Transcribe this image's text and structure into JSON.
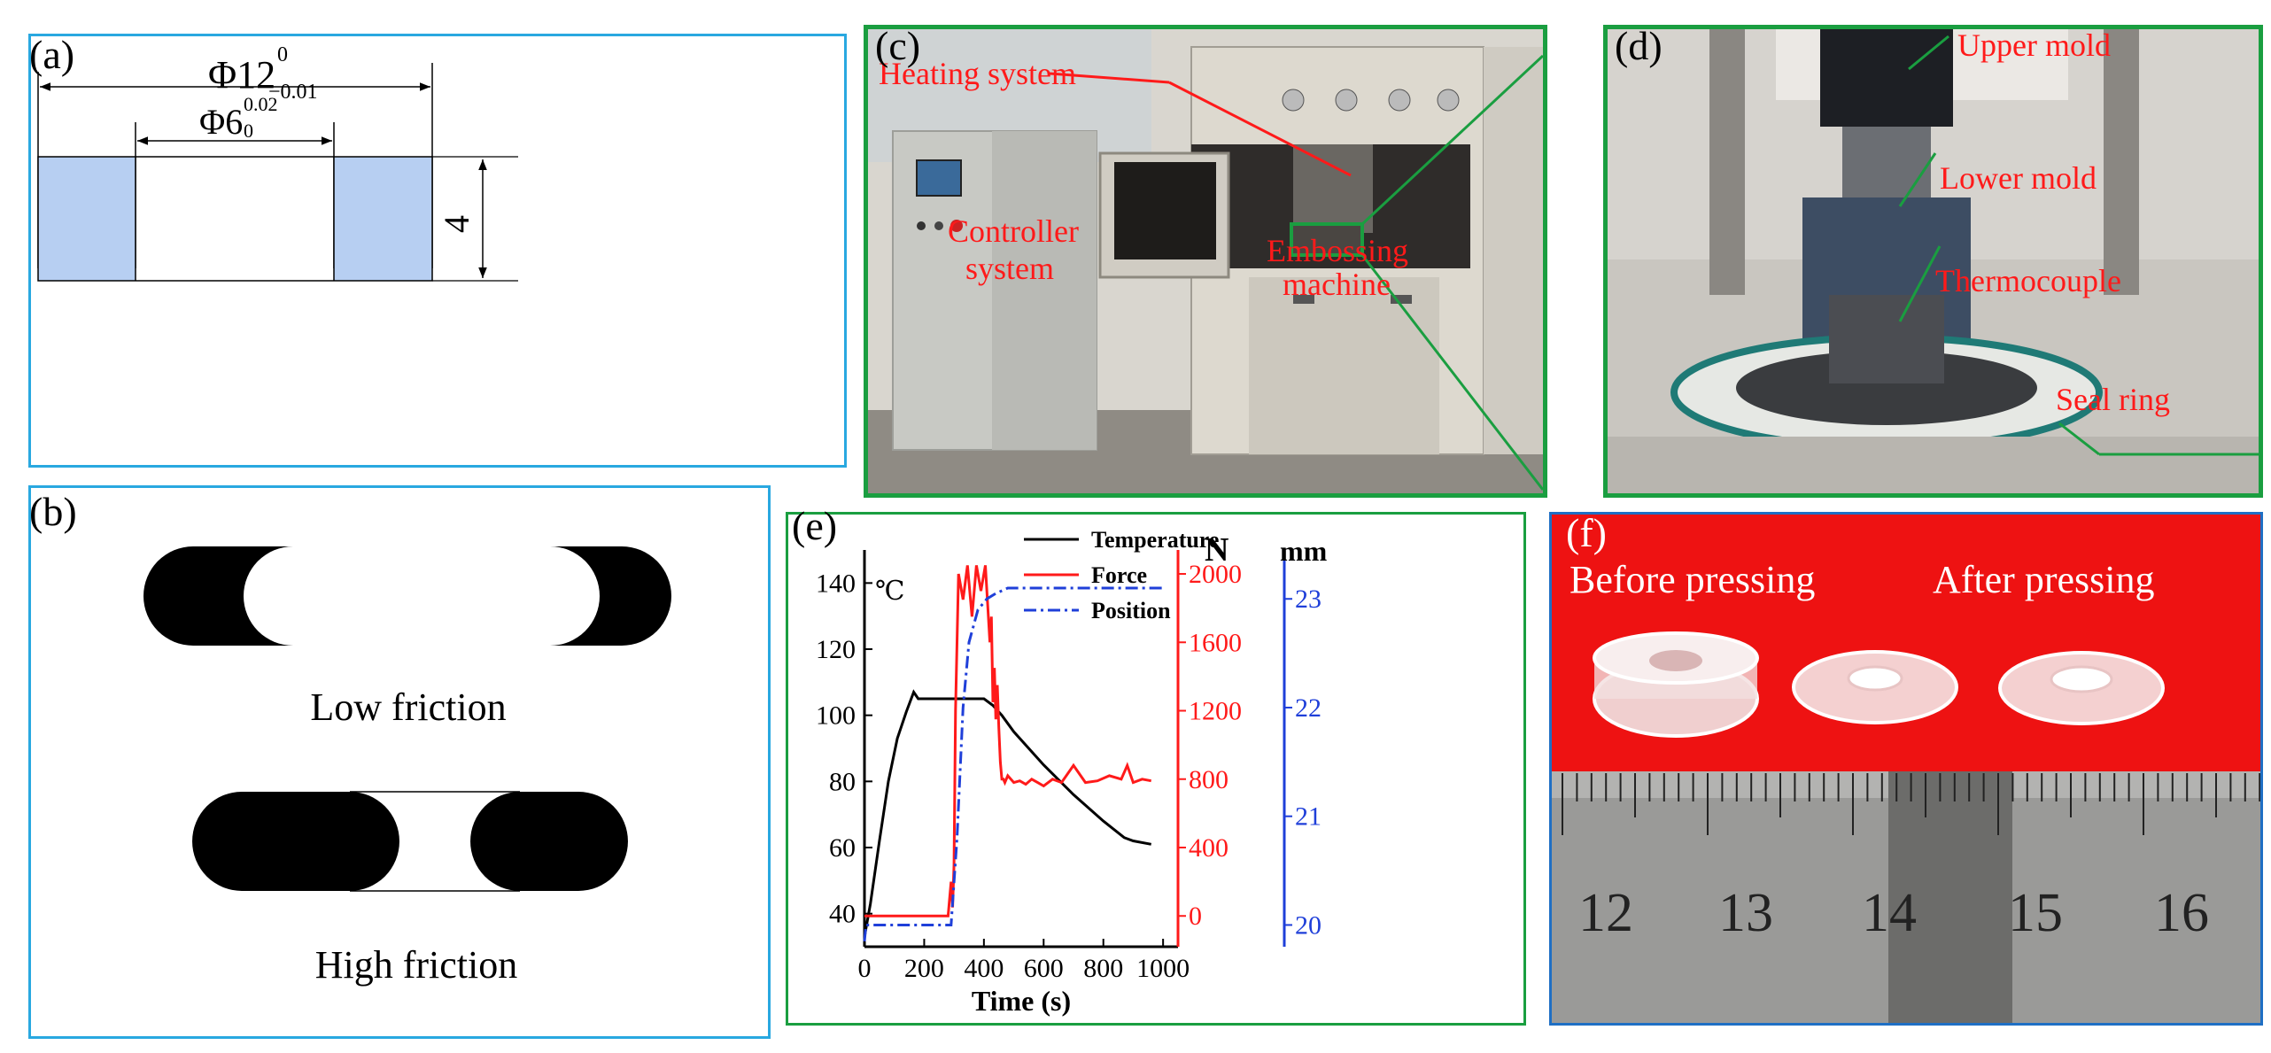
{
  "panels": {
    "a": {
      "tag": "(a)",
      "dim_outer": {
        "symbol": "Φ12",
        "upper_tol": "0",
        "lower_tol": "−0.01"
      },
      "dim_inner": {
        "symbol": "Φ6",
        "upper_tol": "0.02",
        "lower_tol": "0"
      },
      "dim_height": "4"
    },
    "b": {
      "tag": "(b)",
      "low_label": "Low friction",
      "high_label": "High friction"
    },
    "c": {
      "tag": "(c)",
      "labels": [
        "Heating system",
        "Controller system",
        "Embossing machine"
      ]
    },
    "d": {
      "tag": "(d)",
      "labels": [
        "Upper mold",
        "Lower mold",
        "Thermocouple",
        "Seal ring"
      ]
    },
    "e": {
      "tag": "(e)"
    },
    "f": {
      "tag": "(f)",
      "before_label": "Before pressing",
      "after_label": "After pressing",
      "ruler_numbers": [
        "12",
        "13",
        "14",
        "15",
        "16"
      ]
    }
  },
  "colors": {
    "panel_border_blue": "#29a8e0",
    "panel_border_green": "#1a9e40",
    "fill_blue": "#b7cff2",
    "annot_red": "#ff1a1a",
    "temp_line": "#000000",
    "force_line": "#ff1a1a",
    "position_line": "#1f3fd9"
  },
  "chart_data": {
    "type": "line",
    "xlabel": "Time (s)",
    "x_ticks": [
      0,
      200,
      400,
      600,
      800,
      1000
    ],
    "xlim": [
      0,
      1050
    ],
    "legend": [
      "Temperature",
      "Force",
      "Position"
    ],
    "legend_position": "top-right",
    "axes": {
      "temperature": {
        "unit": "℃",
        "ylim": [
          30,
          150
        ],
        "ticks": [
          40,
          60,
          80,
          100,
          120,
          140
        ],
        "color": "#000000"
      },
      "force": {
        "unit": "N",
        "ylim": [
          -180,
          2140
        ],
        "ticks": [
          0,
          400,
          800,
          1200,
          1600,
          2000
        ],
        "color": "#ff1a1a"
      },
      "position": {
        "unit": "mm",
        "ylim": [
          19.8,
          23.45
        ],
        "ticks": [
          20,
          21,
          22,
          23
        ],
        "color": "#1f3fd9"
      }
    },
    "series": [
      {
        "name": "Temperature",
        "axis": "temperature",
        "x": [
          0,
          20,
          50,
          80,
          110,
          140,
          165,
          180,
          200,
          300,
          400,
          430,
          460,
          500,
          600,
          700,
          800,
          870,
          900,
          960
        ],
        "y": [
          33,
          43,
          62,
          80,
          93,
          101,
          107,
          105,
          105,
          105,
          105,
          103,
          100,
          95,
          85,
          76,
          68,
          63,
          62,
          61
        ]
      },
      {
        "name": "Force",
        "axis": "force",
        "x": [
          0,
          280,
          290,
          295,
          300,
          305,
          315,
          330,
          345,
          360,
          375,
          390,
          405,
          420,
          425,
          430,
          435,
          440,
          445,
          450,
          455,
          460,
          465,
          470,
          480,
          500,
          520,
          540,
          560,
          580,
          600,
          630,
          660,
          700,
          740,
          780,
          820,
          860,
          880,
          900,
          930,
          960
        ],
        "y": [
          0,
          0,
          200,
          50,
          300,
          1200,
          2000,
          1850,
          2050,
          1750,
          2050,
          1900,
          2050,
          1600,
          1750,
          1250,
          1450,
          1150,
          1350,
          1100,
          900,
          800,
          800,
          780,
          820,
          780,
          790,
          770,
          800,
          780,
          760,
          800,
          780,
          880,
          780,
          790,
          820,
          800,
          880,
          780,
          800,
          790
        ]
      },
      {
        "name": "Position",
        "axis": "position",
        "x": [
          0,
          5,
          290,
          310,
          330,
          350,
          380,
          410,
          440,
          480,
          1000
        ],
        "y": [
          19.85,
          20.0,
          20.0,
          20.8,
          22.0,
          22.6,
          22.9,
          23.0,
          23.05,
          23.1,
          23.1
        ]
      }
    ]
  }
}
